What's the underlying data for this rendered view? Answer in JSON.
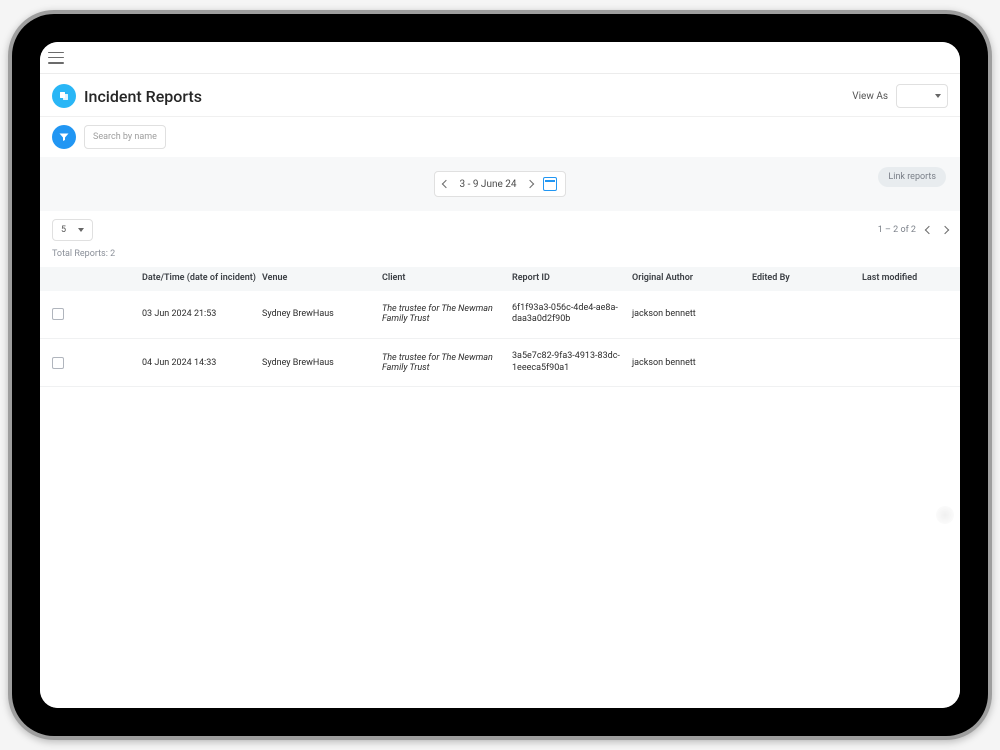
{
  "colors": {
    "accent_blue": "#2196f3",
    "header_icon_blue": "#29b6f6",
    "link_reports_bg": "#e8ecef",
    "link_reports_text": "#7b8089",
    "table_header_bg": "#f5f7f8",
    "border": "#e0e0e0",
    "text": "#2b2b2b",
    "muted_text": "#8a8f98"
  },
  "page": {
    "title": "Incident Reports",
    "view_as_label": "View As"
  },
  "search": {
    "placeholder": "Search by name"
  },
  "date_range": {
    "label": "3 - 9 June 24"
  },
  "link_reports_label": "Link reports",
  "page_size": {
    "value": "5"
  },
  "pagination": {
    "label": "1 – 2 of 2"
  },
  "totals": {
    "label": "Total Reports: 2"
  },
  "table": {
    "columns": {
      "datetime": "Date/Time (date of incident)",
      "venue": "Venue",
      "client": "Client",
      "report_id": "Report ID",
      "original_author": "Original Author",
      "edited_by": "Edited By",
      "last_modified": "Last modified"
    },
    "rows": [
      {
        "datetime": "03 Jun 2024 21:53",
        "venue": "Sydney BrewHaus",
        "client": "The trustee for The Newman Family Trust",
        "report_id": "6f1f93a3-056c-4de4-ae8a-daa3a0d2f90b",
        "original_author": "jackson bennett",
        "edited_by": "",
        "last_modified": ""
      },
      {
        "datetime": "04 Jun 2024 14:33",
        "venue": "Sydney BrewHaus",
        "client": "The trustee for The Newman Family Trust",
        "report_id": "3a5e7c82-9fa3-4913-83dc-1eeeca5f90a1",
        "original_author": "jackson bennett",
        "edited_by": "",
        "last_modified": ""
      }
    ]
  }
}
